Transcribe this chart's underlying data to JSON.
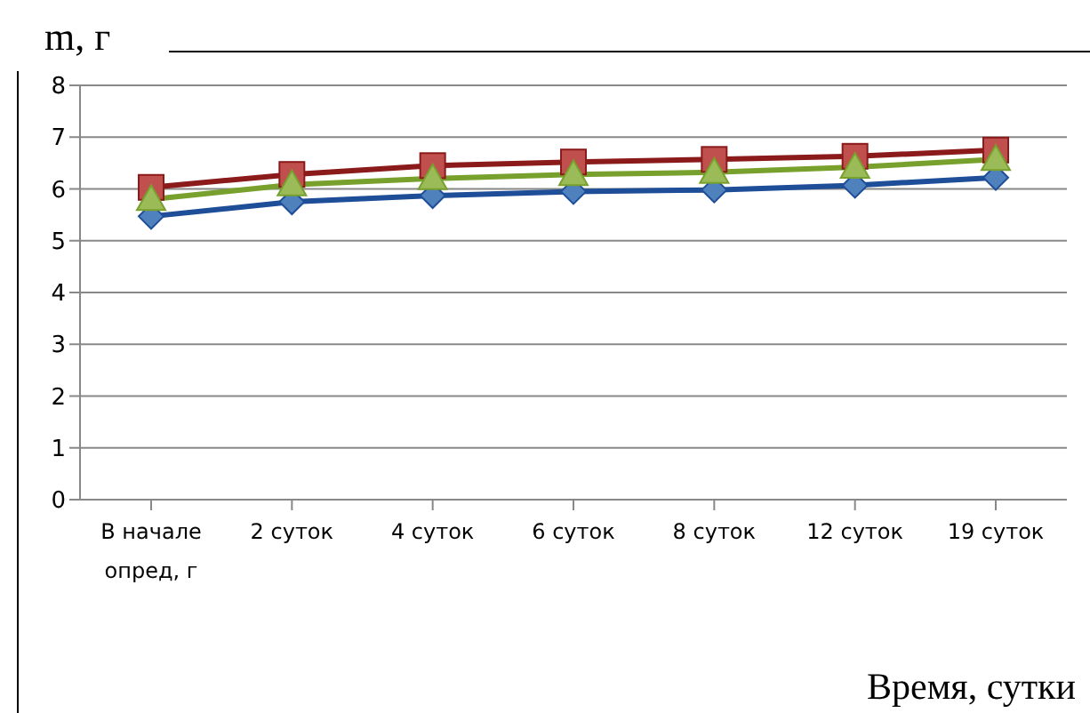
{
  "chart_data": {
    "type": "line",
    "ylabel": "m, г",
    "xlabel": "Время, сутки",
    "categories": [
      "В начале опред, г",
      "2 суток",
      "4 суток",
      "6 суток",
      "8 суток",
      "12 суток",
      "19 суток"
    ],
    "series": [
      {
        "color": "#1f4e99",
        "marker": "diamond",
        "values": [
          5.47,
          5.75,
          5.87,
          5.95,
          5.98,
          6.07,
          6.22
        ]
      },
      {
        "color": "#8b1a1a",
        "marker": "square",
        "values": [
          6.03,
          6.28,
          6.45,
          6.52,
          6.57,
          6.63,
          6.75
        ]
      },
      {
        "color": "#77a02c",
        "marker": "triangle",
        "values": [
          5.8,
          6.08,
          6.2,
          6.28,
          6.32,
          6.42,
          6.57
        ]
      }
    ],
    "ylim": [
      0,
      8
    ],
    "yticks": [
      0,
      1,
      2,
      3,
      4,
      5,
      6,
      7,
      8
    ],
    "grid": "y",
    "legend": false
  }
}
